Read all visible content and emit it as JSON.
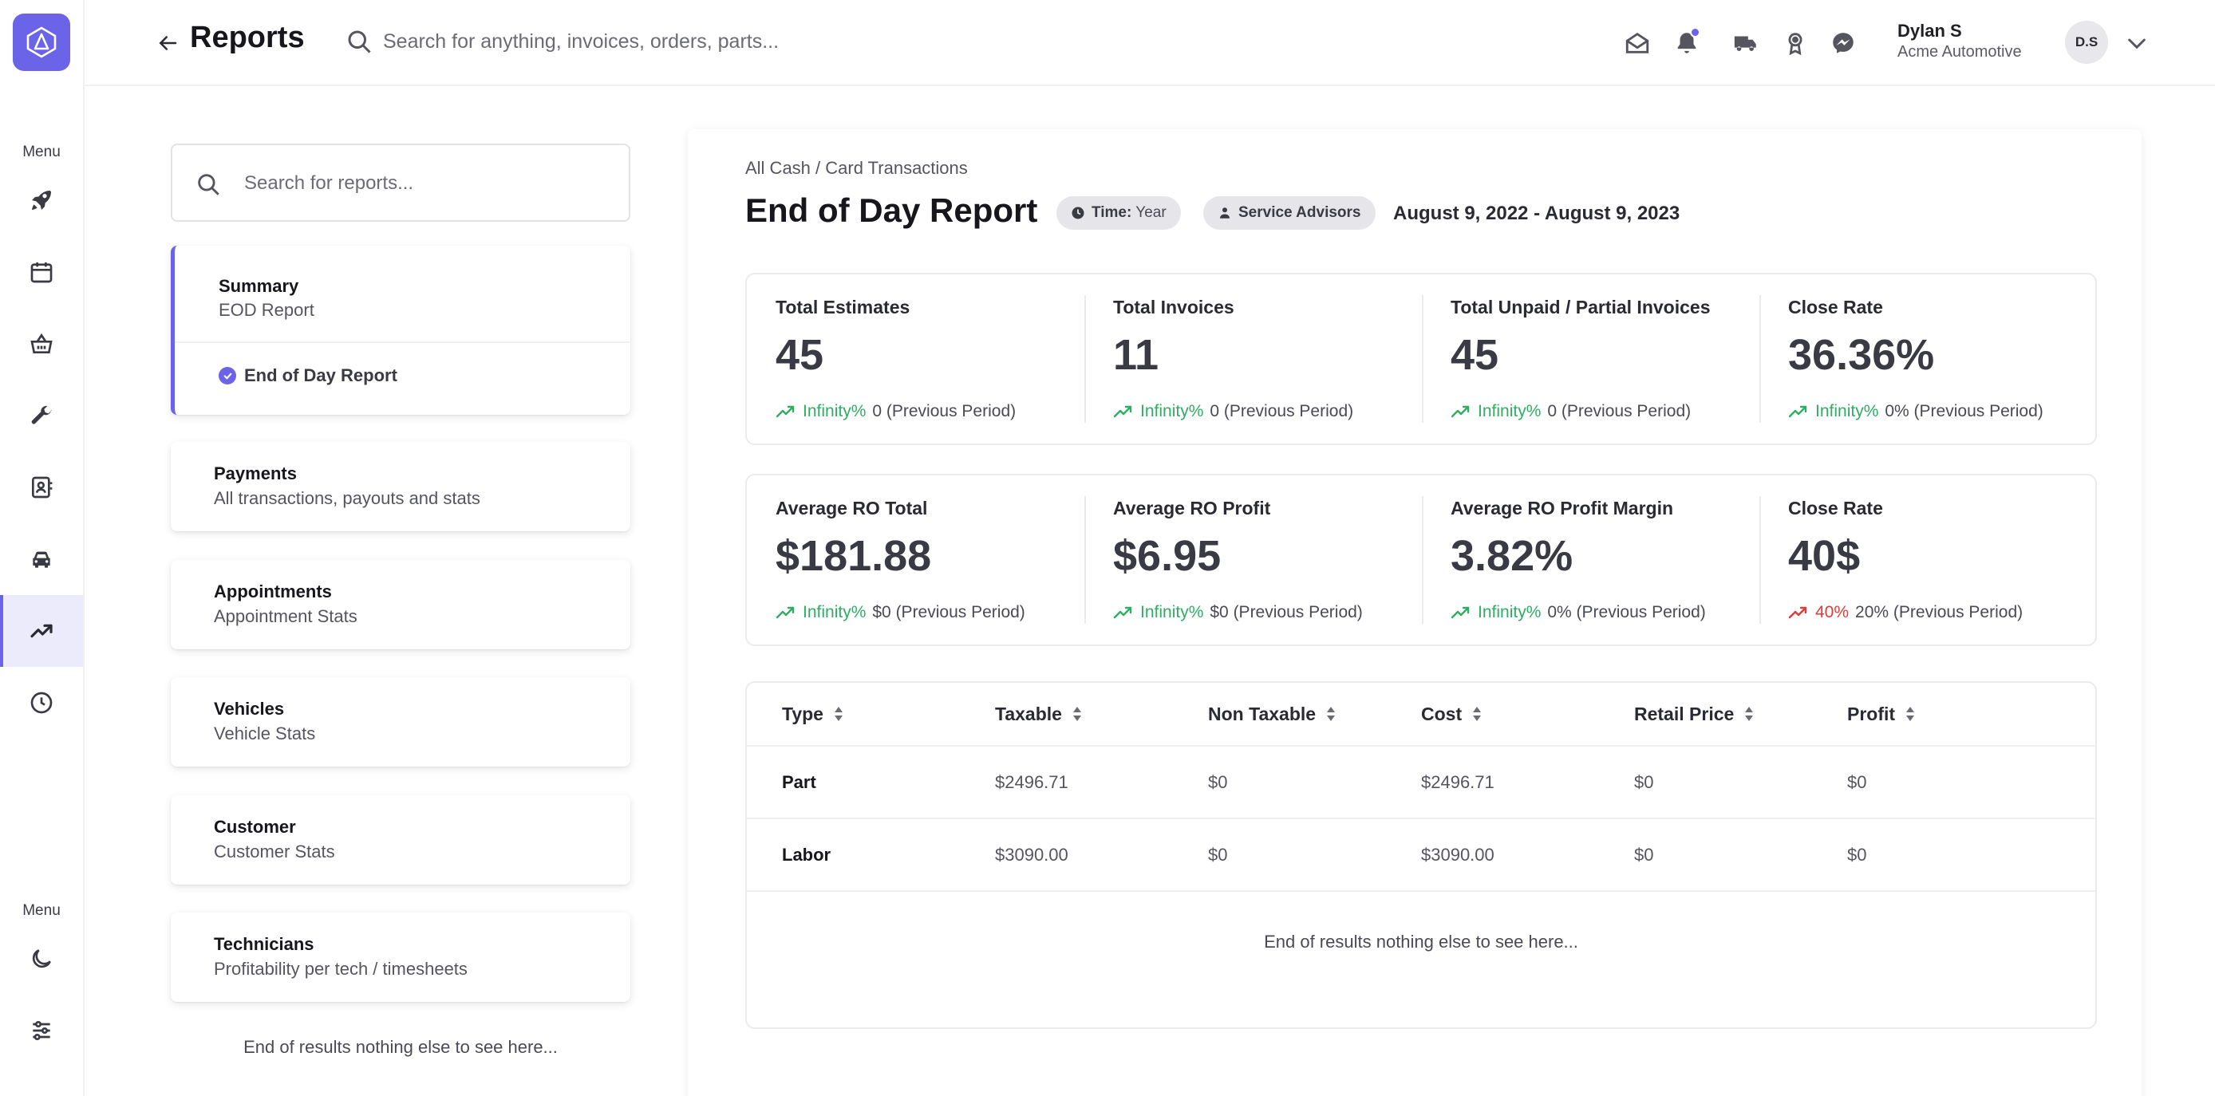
{
  "rail": {
    "menu_label_top": "Menu",
    "menu_label_bottom": "Menu",
    "items": [
      "rocket-icon",
      "calendar-icon",
      "basket-icon",
      "wrench-icon",
      "contacts-icon",
      "car-icon",
      "trending-up-icon",
      "clock-icon"
    ],
    "bottom_items": [
      "moon-icon",
      "sliders-icon"
    ],
    "active": "trending-up-icon"
  },
  "header": {
    "title": "Reports",
    "search_placeholder": "Search for anything, invoices, orders, parts...",
    "user_name": "Dylan S",
    "user_org": "Acme Automotive",
    "avatar_initials": "D.S"
  },
  "reports": {
    "search_placeholder": "Search for reports...",
    "summary": {
      "title": "Summary",
      "subtitle": "EOD Report",
      "sub_item": "End of Day Report"
    },
    "cards": [
      {
        "title": "Payments",
        "subtitle": "All transactions, payouts and stats"
      },
      {
        "title": "Appointments",
        "subtitle": "Appointment Stats"
      },
      {
        "title": "Vehicles",
        "subtitle": "Vehicle Stats"
      },
      {
        "title": "Customer",
        "subtitle": "Customer Stats"
      },
      {
        "title": "Technicians",
        "subtitle": "Profitability per tech / timesheets"
      }
    ],
    "end_text": "End of results nothing else to see here..."
  },
  "report": {
    "breadcrumb": "All Cash / Card Transactions",
    "title": "End of Day Report",
    "chip_time_label": "Time:",
    "chip_time_value": "Year",
    "chip_advisors": "Service Advisors",
    "date_range": "August 9, 2022 - August 9, 2023",
    "stats_row1": [
      {
        "label": "Total Estimates",
        "value": "45",
        "pct": "Infinity%",
        "prev": "0 (Previous Period)",
        "trend": "up"
      },
      {
        "label": "Total Invoices",
        "value": "11",
        "pct": "Infinity%",
        "prev": "0 (Previous Period)",
        "trend": "up"
      },
      {
        "label": "Total Unpaid / Partial Invoices",
        "value": "45",
        "pct": "Infinity%",
        "prev": "0 (Previous Period)",
        "trend": "up"
      },
      {
        "label": "Close Rate",
        "value": "36.36%",
        "pct": "Infinity%",
        "prev": "0% (Previous Period)",
        "trend": "up"
      }
    ],
    "stats_row2": [
      {
        "label": "Average RO Total",
        "value": "$181.88",
        "pct": "Infinity%",
        "prev": "$0 (Previous Period)",
        "trend": "up"
      },
      {
        "label": "Average RO Profit",
        "value": "$6.95",
        "pct": "Infinity%",
        "prev": "$0 (Previous Period)",
        "trend": "up"
      },
      {
        "label": "Average RO Profit Margin",
        "value": "3.82%",
        "pct": "Infinity%",
        "prev": "0% (Previous Period)",
        "trend": "up"
      },
      {
        "label": "Close Rate",
        "value": "40$",
        "pct": "40%",
        "prev": "20% (Previous Period)",
        "trend": "down"
      }
    ],
    "table": {
      "columns": [
        "Type",
        "Taxable",
        "Non Taxable",
        "Cost",
        "Retail Price",
        "Profit"
      ],
      "rows": [
        [
          "Part",
          "$2496.71",
          "$0",
          "$2496.71",
          "$0",
          "$0"
        ],
        [
          "Labor",
          "$3090.00",
          "$0",
          "$3090.00",
          "$0",
          "$0"
        ]
      ],
      "end_text": "End of results nothing else to see here..."
    }
  },
  "colors": {
    "accent": "#6b63e8",
    "up": "#2fae63",
    "down": "#e23b3b"
  }
}
